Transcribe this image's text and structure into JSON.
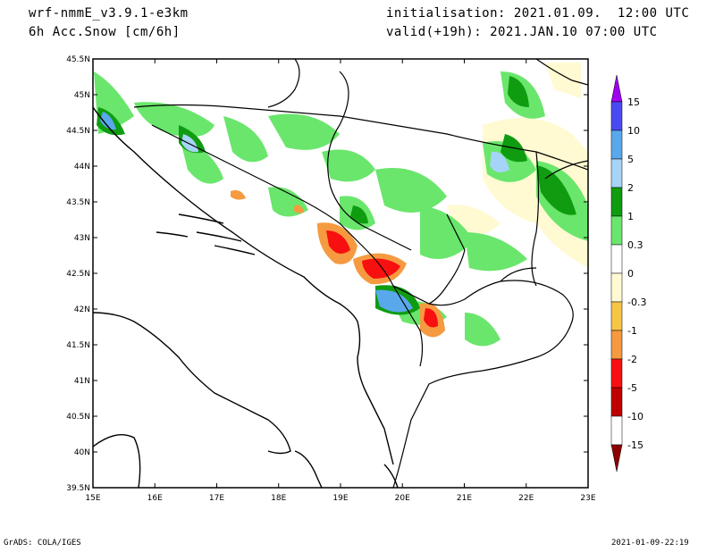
{
  "header": {
    "model": "wrf-nmmE_v3.9.1-e3km",
    "field": "6h Acc.Snow [cm/6h]",
    "init": "initialisation: 2021.01.09.  12:00 UTC",
    "valid": "valid(+19h): 2021.JAN.10 07:00 UTC"
  },
  "footer": {
    "credit": "GrADS: COLA/IGES",
    "timestamp": "2021-01-09-22:19"
  },
  "map": {
    "lon_labels": [
      "15E",
      "16E",
      "17E",
      "18E",
      "19E",
      "20E",
      "21E",
      "22E",
      "23E"
    ],
    "lat_labels": [
      "45.5N",
      "45N",
      "44.5N",
      "44N",
      "43.5N",
      "43N",
      "42.5N",
      "42N",
      "41.5N",
      "41N",
      "40.5N",
      "40N",
      "39.5N"
    ]
  },
  "colorbar": {
    "labels": [
      "15",
      "10",
      "5",
      "2",
      "1",
      "0.3",
      "0",
      "-0.3",
      "-1",
      "-2",
      "-5",
      "-10",
      "-15"
    ],
    "colors": [
      "#a000f0",
      "#4a4af5",
      "#5aa8ec",
      "#a6d4f8",
      "#0f9c10",
      "#6ae66c",
      "#ffffff",
      "#fffad2",
      "#f6c544",
      "#f59a40",
      "#f81010",
      "#c00000",
      "#8c0000"
    ],
    "top_arrow_color": "#a000f0",
    "bottom_arrow_color": "#8c0000"
  }
}
